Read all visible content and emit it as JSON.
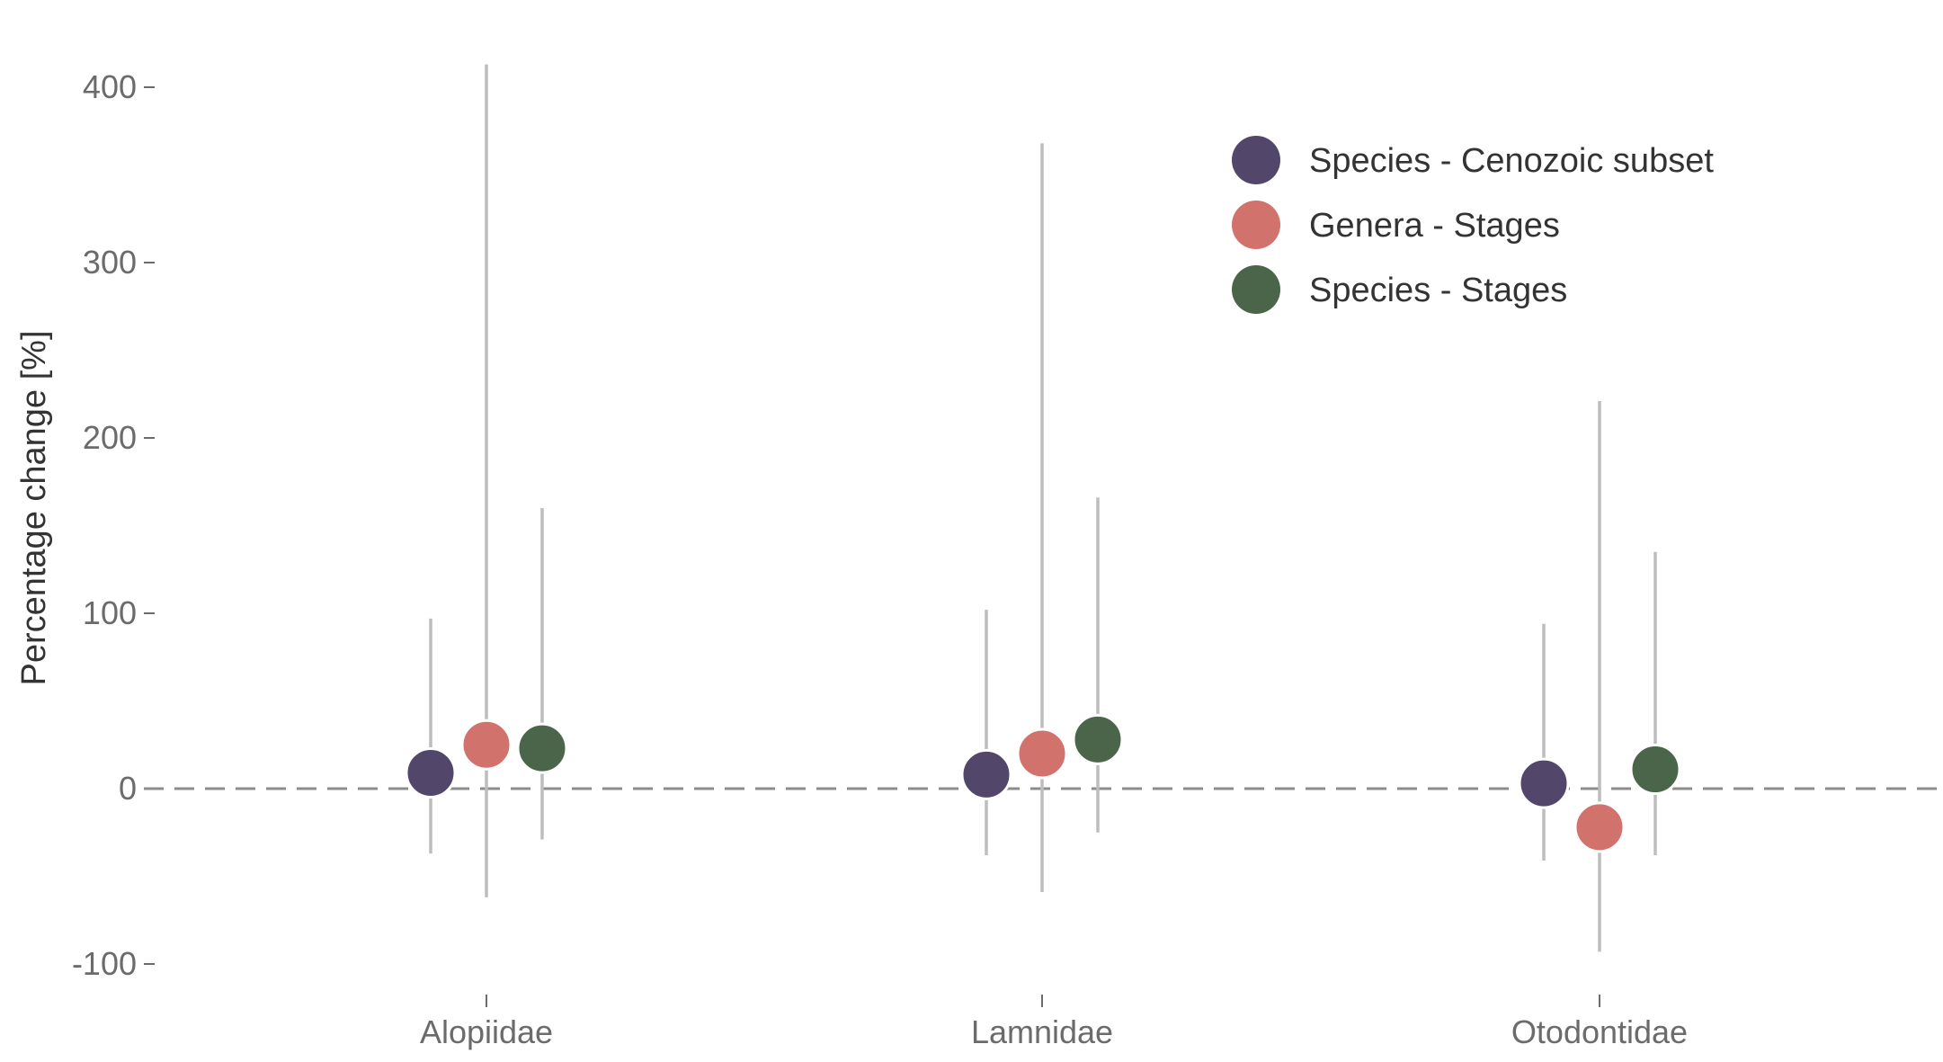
{
  "chart_data": {
    "type": "scatter",
    "title": "",
    "xlabel": "",
    "ylabel": "Percentage change [%]",
    "categories": [
      "Alopiidae",
      "Lamnidae",
      "Otodontidae"
    ],
    "ylim": [
      -110,
      420
    ],
    "yticks": [
      -100,
      0,
      100,
      200,
      300,
      400
    ],
    "ytick_labels": [
      "-100",
      "0",
      "100",
      "200",
      "300",
      "400"
    ],
    "reference_line": 0,
    "grid": false,
    "legend_position": "top-right",
    "series": [
      {
        "name": "Species - Cenozoic subset",
        "color": "#52466b",
        "values": [
          9,
          8,
          3
        ],
        "lower": [
          -37,
          -38,
          -41
        ],
        "upper": [
          97,
          102,
          94
        ]
      },
      {
        "name": "Genera - Stages",
        "color": "#d1726c",
        "values": [
          25,
          20,
          -22
        ],
        "lower": [
          -62,
          -59,
          -93
        ],
        "upper": [
          413,
          368,
          221
        ]
      },
      {
        "name": "Species - Stages",
        "color": "#4a6549",
        "values": [
          23,
          28,
          11
        ],
        "lower": [
          -29,
          -25,
          -38
        ],
        "upper": [
          160,
          166,
          135
        ]
      }
    ]
  }
}
